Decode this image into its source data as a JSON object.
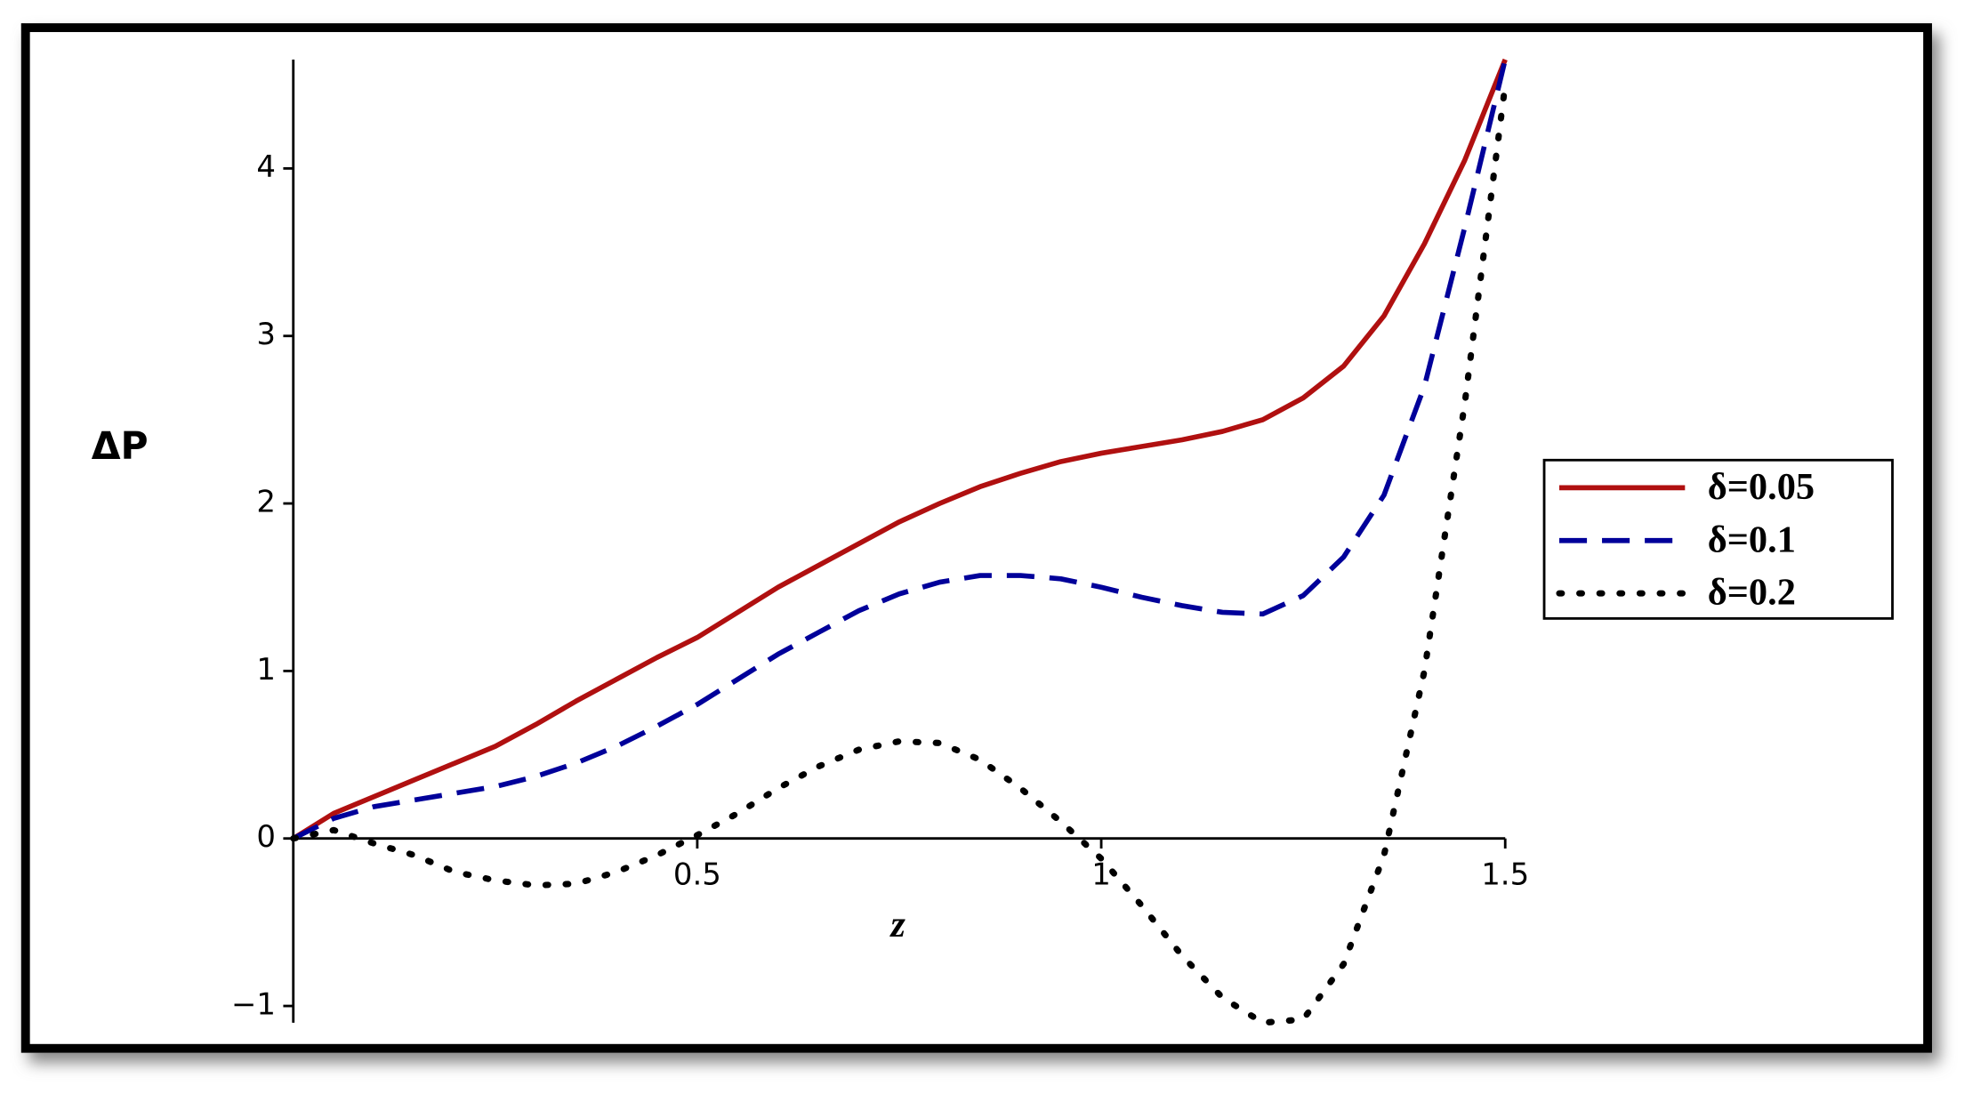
{
  "chart_data": {
    "type": "line",
    "x_label": "z",
    "y_label": "ΔP",
    "x": [
      0,
      0.05,
      0.1,
      0.15,
      0.2,
      0.25,
      0.3,
      0.35,
      0.4,
      0.45,
      0.5,
      0.55,
      0.6,
      0.65,
      0.7,
      0.75,
      0.8,
      0.85,
      0.9,
      0.95,
      1.0,
      1.05,
      1.1,
      1.15,
      1.2,
      1.25,
      1.3,
      1.35,
      1.4,
      1.45,
      1.5
    ],
    "series": [
      {
        "name": "δ=0.05",
        "color": "#b01010",
        "dash": "solid",
        "values": [
          0,
          0.15,
          0.25,
          0.35,
          0.45,
          0.55,
          0.68,
          0.82,
          0.95,
          1.08,
          1.2,
          1.35,
          1.5,
          1.63,
          1.76,
          1.89,
          2.0,
          2.1,
          2.18,
          2.25,
          2.3,
          2.34,
          2.38,
          2.43,
          2.5,
          2.63,
          2.82,
          3.12,
          3.55,
          4.05,
          4.65
        ]
      },
      {
        "name": "δ=0.1",
        "color": "#00009a",
        "dash": "dashed",
        "values": [
          0,
          0.12,
          0.19,
          0.23,
          0.27,
          0.31,
          0.37,
          0.45,
          0.55,
          0.67,
          0.8,
          0.95,
          1.1,
          1.23,
          1.36,
          1.46,
          1.53,
          1.57,
          1.57,
          1.55,
          1.5,
          1.44,
          1.39,
          1.35,
          1.34,
          1.45,
          1.68,
          2.05,
          2.7,
          3.65,
          4.65
        ]
      },
      {
        "name": "δ=0.2",
        "color": "#000000",
        "dash": "dotted",
        "values": [
          0,
          0.05,
          -0.03,
          -0.1,
          -0.2,
          -0.25,
          -0.28,
          -0.27,
          -0.2,
          -0.1,
          0.02,
          0.15,
          0.3,
          0.43,
          0.53,
          0.58,
          0.57,
          0.47,
          0.3,
          0.1,
          -0.12,
          -0.4,
          -0.7,
          -0.95,
          -1.1,
          -1.08,
          -0.75,
          -0.1,
          1.0,
          2.6,
          4.5
        ]
      }
    ],
    "xlim": [
      0,
      1.5
    ],
    "xticks": [
      0.5,
      1,
      1.5
    ],
    "ylim": [
      -1.1,
      4.65
    ],
    "yticks": [
      {
        "value": -1,
        "label": "−1"
      },
      0,
      1,
      2,
      3,
      4
    ],
    "legend": "right"
  }
}
